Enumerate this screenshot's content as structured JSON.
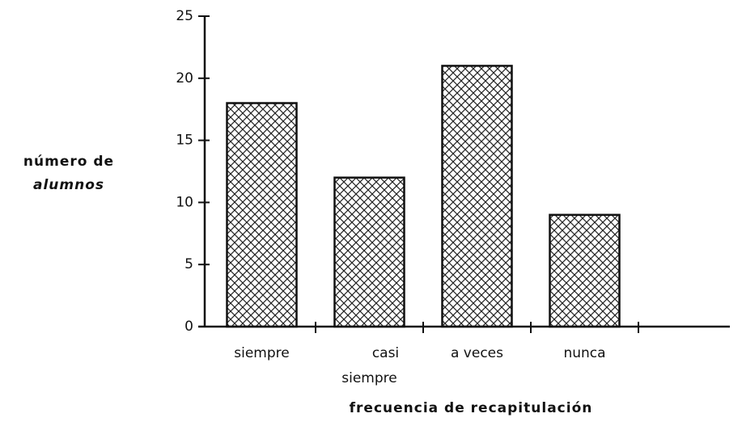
{
  "chart_data": {
    "type": "bar",
    "ylabel": [
      "número de",
      "alumnos"
    ],
    "xlabel": "frecuencia de recapitulación",
    "categories": [
      "siempre",
      "casi siempre",
      "a veces",
      "nunca",
      null
    ],
    "values": [
      18,
      12,
      21,
      9,
      0
    ],
    "color": "#111111",
    "ylim": [
      0,
      25
    ],
    "yticks": [
      0,
      5,
      10,
      15,
      20,
      25
    ]
  }
}
